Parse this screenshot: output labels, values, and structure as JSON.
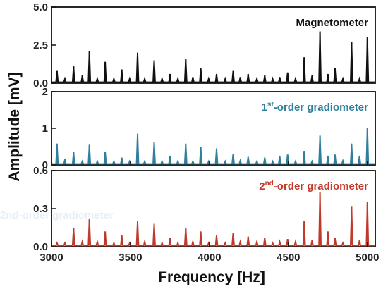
{
  "chart_data": {
    "type": "line",
    "xlabel": "Frequency [Hz]",
    "ylabel": "Amplitude [mV]",
    "xlim": [
      3000,
      5050
    ],
    "x_ticks": [
      "3000",
      "3500",
      "4000",
      "4500",
      "5000"
    ],
    "x_tick_values": [
      3000,
      3500,
      4000,
      4500,
      5000
    ],
    "grid": false,
    "peak_frequencies": [
      3035,
      3085,
      3140,
      3195,
      3240,
      3290,
      3340,
      3395,
      3445,
      3495,
      3545,
      3590,
      3650,
      3700,
      3750,
      3800,
      3850,
      3895,
      3945,
      3995,
      4045,
      4100,
      4150,
      4195,
      4245,
      4300,
      4350,
      4400,
      4445,
      4495,
      4545,
      4600,
      4650,
      4700,
      4750,
      4795,
      4845,
      4900,
      4950,
      5000
    ],
    "panels": [
      {
        "name": "Magnetometer",
        "label_main": "Magnetometer",
        "label_sup": "",
        "label_rest": "",
        "color": "#111111",
        "ylim": [
          0,
          5
        ],
        "y_ticks": [
          "0.0",
          "2.5",
          "5.0"
        ],
        "y_tick_values": [
          0,
          2.5,
          5
        ],
        "values": [
          0.8,
          0.3,
          1.1,
          0.5,
          2.1,
          0.3,
          1.4,
          0.3,
          0.9,
          0.3,
          2.0,
          0.3,
          1.5,
          0.3,
          0.6,
          0.3,
          1.6,
          0.4,
          1.0,
          0.3,
          0.6,
          0.3,
          0.8,
          0.4,
          0.6,
          0.3,
          0.5,
          0.3,
          0.4,
          0.7,
          0.3,
          1.7,
          0.5,
          3.4,
          0.6,
          1.0,
          0.3,
          2.7,
          0.3,
          3.0
        ]
      },
      {
        "name": "1st-order gradiometer",
        "label_main": "1",
        "label_sup": "st",
        "label_rest": "-order gradiometer",
        "color": "#2f7f9e",
        "ylim": [
          0,
          2
        ],
        "y_ticks": [
          "0",
          "1",
          "2"
        ],
        "y_tick_values": [
          0,
          1,
          2
        ],
        "values": [
          0.58,
          0.15,
          0.35,
          0.1,
          0.55,
          0.1,
          0.35,
          0.1,
          0.2,
          0.1,
          0.85,
          0.1,
          0.62,
          0.1,
          0.25,
          0.1,
          0.58,
          0.1,
          0.5,
          0.1,
          0.45,
          0.1,
          0.3,
          0.12,
          0.22,
          0.1,
          0.2,
          0.1,
          0.25,
          0.28,
          0.1,
          0.38,
          0.1,
          0.8,
          0.25,
          0.28,
          0.12,
          0.58,
          0.25,
          1.02
        ]
      },
      {
        "name": "2nd-order gradiometer",
        "label_main": "2",
        "label_sup": "nd",
        "label_rest": "-order gradiometer",
        "color": "#c0392b",
        "ylim": [
          0,
          0.6
        ],
        "y_ticks": [
          "0.0",
          "0.3",
          "0.6"
        ],
        "y_tick_values": [
          0,
          0.3,
          0.6
        ],
        "values": [
          0.03,
          0.03,
          0.15,
          0.04,
          0.22,
          0.04,
          0.12,
          0.03,
          0.09,
          0.03,
          0.2,
          0.04,
          0.18,
          0.03,
          0.07,
          0.03,
          0.15,
          0.04,
          0.12,
          0.03,
          0.09,
          0.03,
          0.11,
          0.04,
          0.08,
          0.04,
          0.07,
          0.03,
          0.04,
          0.06,
          0.04,
          0.2,
          0.05,
          0.43,
          0.12,
          0.07,
          0.03,
          0.32,
          0.05,
          0.35
        ]
      }
    ]
  },
  "watermark": "2nd-order gradiometer"
}
